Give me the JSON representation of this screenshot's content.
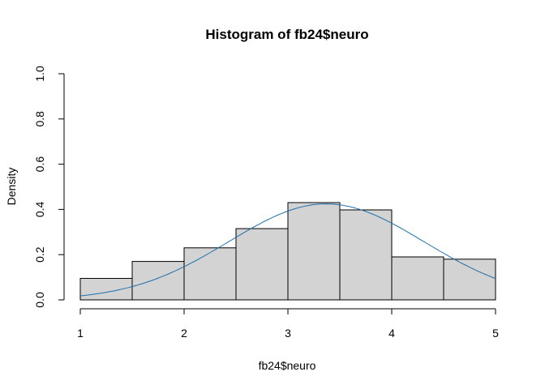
{
  "chart_data": {
    "type": "bar",
    "subtype": "histogram",
    "title": "Histogram of fb24$neuro",
    "xlabel": "fb24$neuro",
    "ylabel": "Density",
    "bin_edges": [
      1,
      1.5,
      2,
      2.5,
      3,
      3.5,
      4,
      4.5,
      5
    ],
    "values": [
      0.095,
      0.17,
      0.23,
      0.315,
      0.43,
      0.398,
      0.19,
      0.18
    ],
    "xlim": [
      1,
      5
    ],
    "ylim": [
      0,
      1
    ],
    "x_ticks": [
      "1",
      "2",
      "3",
      "4",
      "5"
    ],
    "y_ticks": [
      "0.0",
      "0.2",
      "0.4",
      "0.6",
      "0.8",
      "1.0"
    ],
    "grid": false,
    "density_curve": {
      "type": "normal",
      "mean": 3.37,
      "sd": 0.94
    },
    "colors": {
      "bar_fill": "#d3d3d3",
      "bar_stroke": "#000000",
      "curve": "#1f6fa8"
    }
  }
}
